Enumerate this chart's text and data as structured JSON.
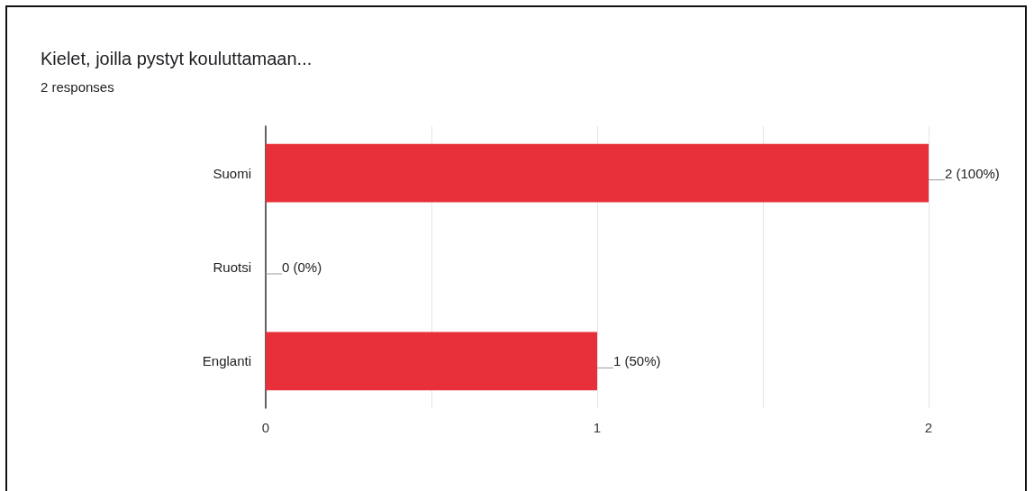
{
  "chart_data": {
    "type": "bar",
    "title": "Kielet, joilla pystyt kouluttamaan...",
    "subtitle": "2 responses",
    "categories": [
      "Suomi",
      "Ruotsi",
      "Englanti"
    ],
    "values": [
      2,
      0,
      1
    ],
    "value_labels": [
      "2 (100%)",
      "0 (0%)",
      "1 (50%)"
    ],
    "color": "#e8303a",
    "orientation": "horizontal",
    "xlim": [
      0,
      2
    ],
    "xticks": [
      0,
      {
        "value": 0.5,
        "label": null
      },
      1,
      {
        "value": 1.5,
        "label": null
      },
      2
    ],
    "grid": "x"
  }
}
